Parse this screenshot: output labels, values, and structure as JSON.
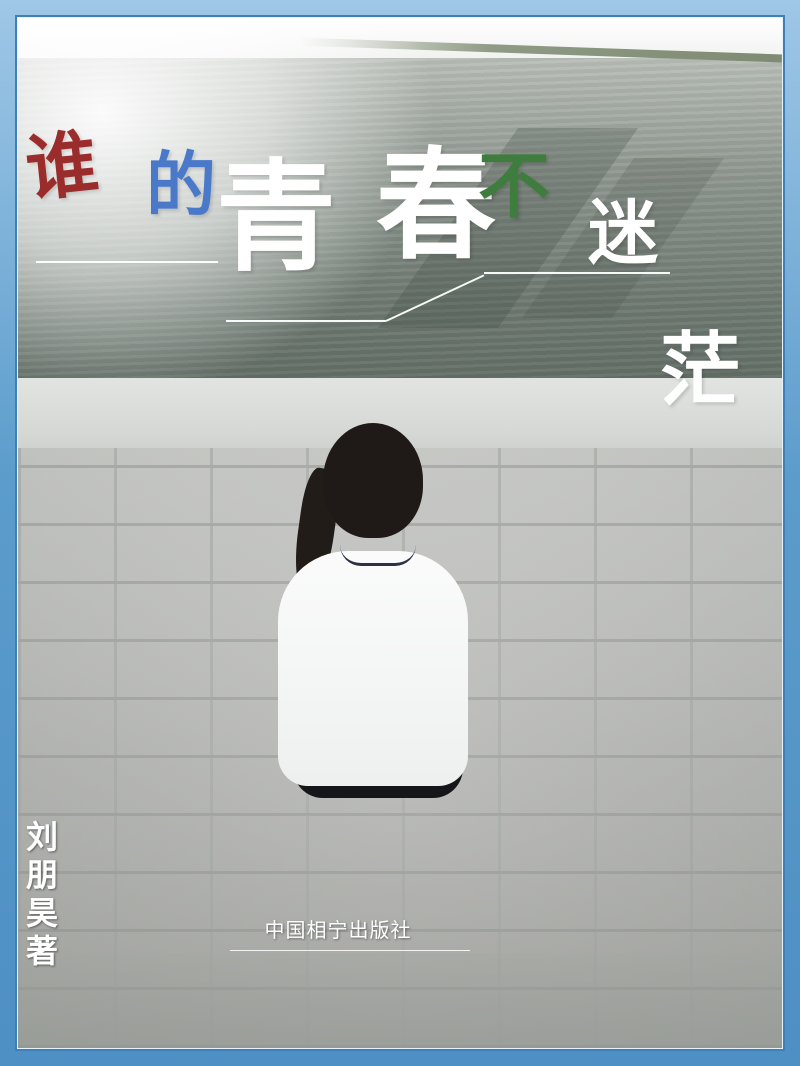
{
  "cover": {
    "title_chars": [
      "谁",
      "的",
      "青",
      "春",
      "不",
      "迷",
      "茫"
    ],
    "title_colors": {
      "谁": "#9b2c2c",
      "的": "#4a79c9",
      "青": "#ffffff",
      "春": "#ffffff",
      "不": "#3f7d3f",
      "迷": "#ffffff",
      "茫": "#ffffff"
    },
    "author_chars": [
      "刘",
      "朋",
      "昊",
      "著"
    ],
    "publisher": "中国相宁出版社"
  },
  "colors": {
    "frame_blue": "#5b9ccc",
    "accent_red": "#9b2c2c",
    "accent_blue": "#4a79c9",
    "accent_green": "#3f7d3f"
  }
}
